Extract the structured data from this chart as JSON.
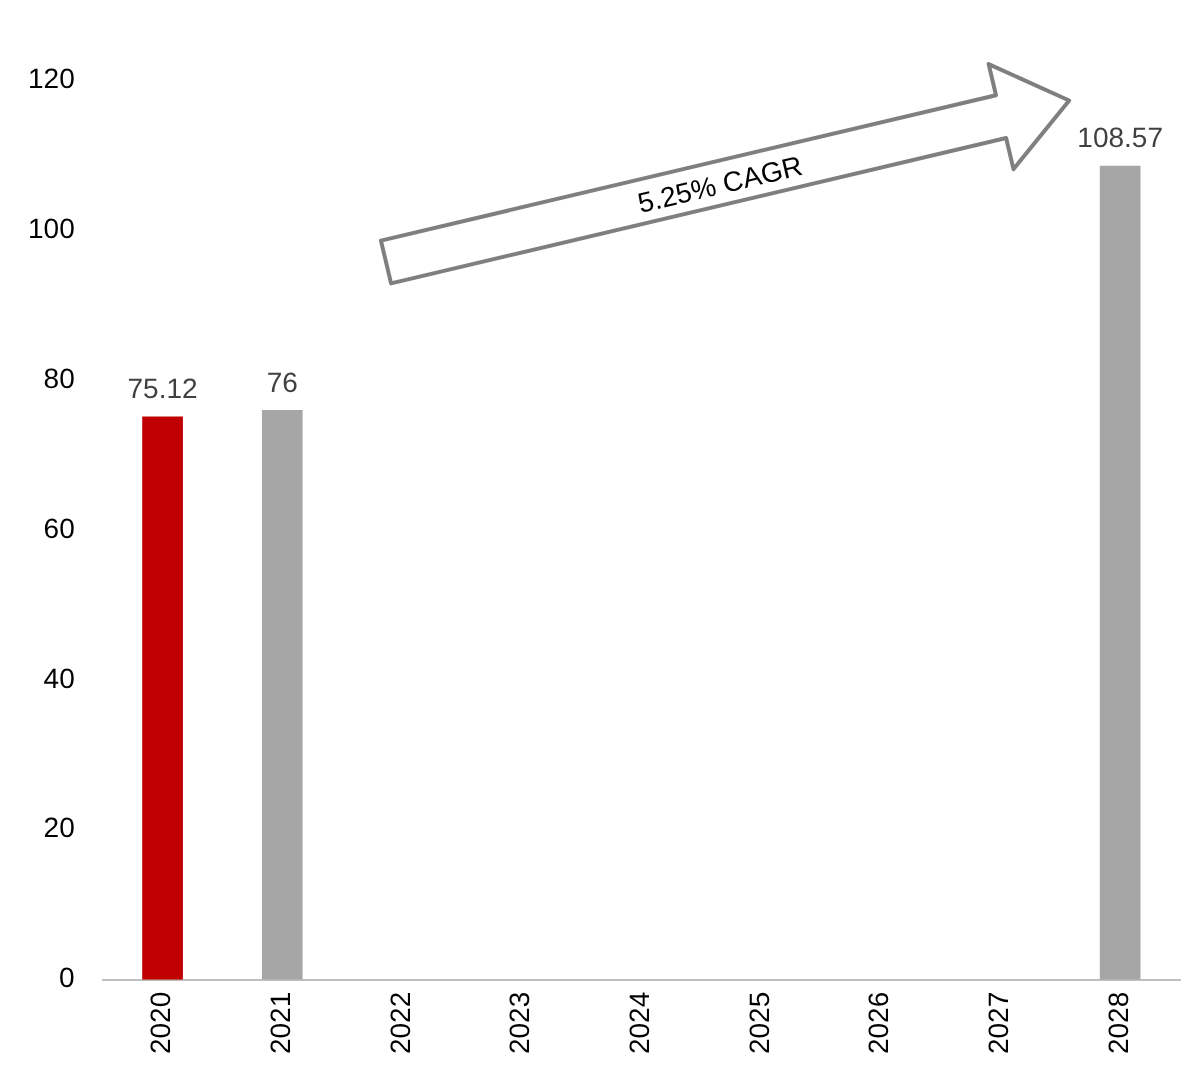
{
  "chart_data": {
    "type": "bar",
    "categories": [
      "2020",
      "2021",
      "2022",
      "2023",
      "2024",
      "2025",
      "2026",
      "2027",
      "2028"
    ],
    "values": [
      75.12,
      76,
      null,
      null,
      null,
      null,
      null,
      null,
      108.57
    ],
    "colors": [
      "#c00000",
      "#a6a6a6",
      "#a6a6a6",
      "#a6a6a6",
      "#a6a6a6",
      "#a6a6a6",
      "#a6a6a6",
      "#a6a6a6",
      "#a6a6a6"
    ],
    "ylim": [
      0,
      120
    ],
    "yticks": [
      0,
      20,
      40,
      60,
      80,
      100,
      120
    ],
    "grid": false,
    "legend": false,
    "data_labels": true,
    "annotations": [
      "5.25% CAGR"
    ]
  }
}
